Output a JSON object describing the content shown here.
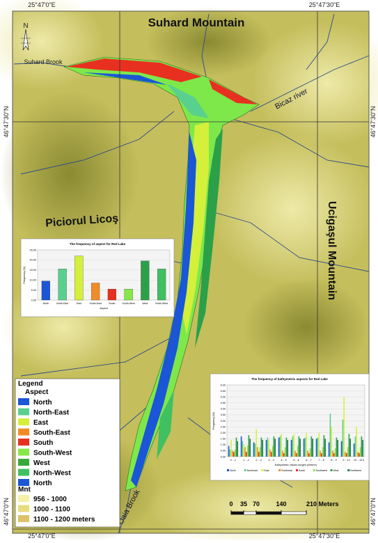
{
  "coordinates": {
    "top": [
      "25°47'0\"E",
      "25°47'30\"E"
    ],
    "bottom": [
      "25°47'0\"E",
      "25°47'30\"E"
    ],
    "left": [
      "46°47'30\"N",
      "46°47'0\"N"
    ],
    "right": [
      "46°47'30\"N",
      "46°47'0\"N"
    ]
  },
  "map_labels": {
    "suhard_mountain": "Suhard Mountain",
    "piciorul": "Piciorul Licoş",
    "ucigasul": "Ucigaşul Mountain",
    "bicaz": "Bicaz river",
    "oaia": "Oaia Brook",
    "suhard_brook": "Suhard Brook",
    "north": "N"
  },
  "legend": {
    "title": "Legend",
    "aspect_title": "Aspect",
    "aspect": [
      {
        "name": "North",
        "color": "#1a56d6"
      },
      {
        "name": "North-East",
        "color": "#5ad08e"
      },
      {
        "name": "East",
        "color": "#d4f03a"
      },
      {
        "name": "South-East",
        "color": "#f08c28"
      },
      {
        "name": "South",
        "color": "#e83020"
      },
      {
        "name": "South-West",
        "color": "#86e848"
      },
      {
        "name": "West",
        "color": "#3aa83a"
      },
      {
        "name": "North-West",
        "color": "#40c060"
      },
      {
        "name": "North",
        "color": "#1a56d6"
      }
    ],
    "mnt_title": "Mnt",
    "mnt": [
      {
        "name": "956 - 1000",
        "color": "#f4f0a8"
      },
      {
        "name": "1000 - 1100",
        "color": "#e8dc7c"
      },
      {
        "name": "1100 - 1200 meters",
        "color": "#dcc268"
      }
    ]
  },
  "scale_bar": {
    "ticks": [
      0,
      35,
      70,
      140,
      {
        "value": 210,
        "label": "210 Meters"
      }
    ]
  },
  "chart_data": [
    {
      "type": "bar",
      "title": "The frequency of aspect for Red Lake",
      "x_label": "Aspect",
      "y_label": "Frequency (%)",
      "categories": [
        "North",
        "North-East",
        "East",
        "South-East",
        "South",
        "South-West",
        "West",
        "North-West"
      ],
      "values": [
        9.5,
        15.5,
        22,
        8.5,
        5.5,
        5.5,
        19.5,
        15.5
      ],
      "colors": [
        "#1a56d6",
        "#5ad08e",
        "#d4f03a",
        "#f08c28",
        "#e83020",
        "#86e848",
        "#2ca048",
        "#40c060"
      ],
      "ylim": [
        0,
        25
      ],
      "yticks": [
        {
          "value": 0,
          "label": "0.00"
        },
        {
          "value": 5,
          "label": "5.00"
        },
        {
          "value": 10,
          "label": "10.00"
        },
        {
          "value": 15,
          "label": "15.00"
        },
        {
          "value": 20,
          "label": "20.00"
        },
        {
          "value": 25,
          "label": "25.00"
        }
      ]
    },
    {
      "type": "grouped-bar",
      "title": "The frequency of bathymetric aspects for Red Lake",
      "x_label": "Bathymetric values ranges (meters)",
      "y_label": "Frequency (%)",
      "categories": [
        "0 - -1",
        "-1 - -2",
        "-2 - -3",
        "-3 - -4",
        "-4 - -5",
        "-5 - -6",
        "-6 - -7",
        "-7 - -8",
        "-8 - -9",
        "-9 - -10",
        "-10 - -10.5"
      ],
      "series": [
        {
          "name": "North",
          "color": "#1a56d6",
          "values": [
            0.9,
            1.7,
            1.2,
            1.4,
            1.6,
            1.4,
            1.5,
            1.5,
            1.2,
            1.3,
            1.1
          ]
        },
        {
          "name": "Northeast",
          "color": "#5ad08e",
          "values": [
            0.6,
            1.3,
            1.1,
            1.6,
            1.7,
            1.7,
            1.6,
            1.6,
            3.6,
            3.1,
            1.7
          ]
        },
        {
          "name": "East",
          "color": "#d4f03a",
          "values": [
            1.4,
            1.0,
            2.3,
            1.4,
            1.9,
            1.9,
            2.0,
            2.0,
            2.5,
            5.0,
            2.5
          ]
        },
        {
          "name": "Southeast",
          "color": "#f08c28",
          "values": [
            0.5,
            0.8,
            0.8,
            0.6,
            0.5,
            0.5,
            0.5,
            0.5,
            0.5,
            0.4,
            0.4
          ]
        },
        {
          "name": "South",
          "color": "#e83020",
          "values": [
            0.4,
            0.4,
            0.4,
            0.4,
            0.3,
            0.3,
            0.3,
            0.3,
            0.3,
            0.3,
            0.3
          ]
        },
        {
          "name": "Southwest",
          "color": "#86e848",
          "values": [
            0.6,
            0.9,
            0.8,
            0.9,
            0.8,
            0.9,
            0.7,
            0.8,
            0.7,
            0.8,
            0.8
          ]
        },
        {
          "name": "West",
          "color": "#2ca048",
          "values": [
            1.6,
            1.8,
            1.6,
            1.7,
            1.6,
            1.7,
            1.7,
            1.8,
            1.6,
            1.9,
            1.7
          ]
        },
        {
          "name": "Northwest",
          "color": "#1f7a4a",
          "values": [
            1.3,
            1.5,
            1.4,
            1.5,
            1.4,
            1.5,
            1.5,
            1.5,
            1.4,
            1.5,
            1.4
          ]
        }
      ],
      "ylim": [
        0,
        6
      ],
      "yticks": [
        {
          "value": 0,
          "label": "0.00"
        },
        {
          "value": 0.5,
          "label": "0.50"
        },
        {
          "value": 1,
          "label": "1.00"
        },
        {
          "value": 1.5,
          "label": "1.50"
        },
        {
          "value": 2,
          "label": "2.00"
        },
        {
          "value": 2.5,
          "label": "2.50"
        },
        {
          "value": 3,
          "label": "3.00"
        },
        {
          "value": 3.5,
          "label": "3.50"
        },
        {
          "value": 4,
          "label": "4.00"
        },
        {
          "value": 4.5,
          "label": "4.50"
        },
        {
          "value": 5,
          "label": "5.00"
        },
        {
          "value": 5.5,
          "label": "5.50"
        },
        {
          "value": 6,
          "label": "6.00"
        }
      ]
    }
  ]
}
